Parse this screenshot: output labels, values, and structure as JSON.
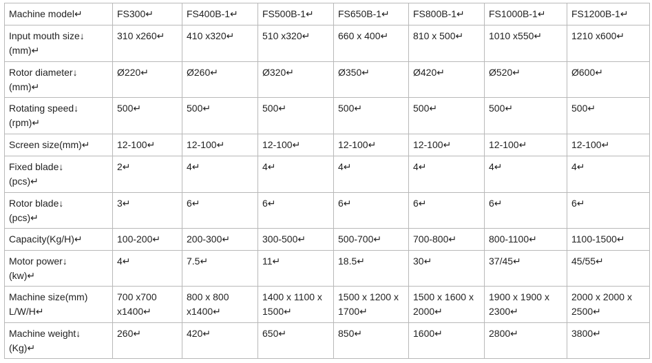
{
  "table": {
    "rows": [
      [
        [
          "Machine model↵"
        ],
        [
          "FS300↵"
        ],
        [
          "FS400B-1↵"
        ],
        [
          "FS500B-1↵"
        ],
        [
          "FS650B-1↵"
        ],
        [
          "FS800B-1↵"
        ],
        [
          "FS1000B-1↵"
        ],
        [
          "FS1200B-1↵"
        ]
      ],
      [
        [
          "Input mouth size↓",
          "(mm)↵"
        ],
        [
          "310 x260↵"
        ],
        [
          "410 x320↵"
        ],
        [
          "510 x320↵"
        ],
        [
          "660 x 400↵"
        ],
        [
          "810 x 500↵"
        ],
        [
          "1010 x550↵"
        ],
        [
          "1210 x600↵"
        ]
      ],
      [
        [
          "Rotor diameter↓",
          "(mm)↵"
        ],
        [
          "Ø220↵"
        ],
        [
          "Ø260↵"
        ],
        [
          "Ø320↵"
        ],
        [
          "Ø350↵"
        ],
        [
          "Ø420↵"
        ],
        [
          "Ø520↵"
        ],
        [
          "Ø600↵"
        ]
      ],
      [
        [
          "Rotating speed↓",
          "(rpm)↵"
        ],
        [
          "500↵"
        ],
        [
          "500↵"
        ],
        [
          "500↵"
        ],
        [
          "500↵"
        ],
        [
          "500↵"
        ],
        [
          "500↵"
        ],
        [
          "500↵"
        ]
      ],
      [
        [
          "Screen size(mm)↵"
        ],
        [
          "12-100↵"
        ],
        [
          "12-100↵"
        ],
        [
          "12-100↵"
        ],
        [
          "12-100↵"
        ],
        [
          "12-100↵"
        ],
        [
          "12-100↵"
        ],
        [
          "12-100↵"
        ]
      ],
      [
        [
          "Fixed blade↓",
          "(pcs)↵"
        ],
        [
          "2↵"
        ],
        [
          "4↵"
        ],
        [
          "4↵"
        ],
        [
          "4↵"
        ],
        [
          "4↵"
        ],
        [
          "4↵"
        ],
        [
          "4↵"
        ]
      ],
      [
        [
          "Rotor blade↓",
          "(pcs)↵"
        ],
        [
          "3↵"
        ],
        [
          "6↵"
        ],
        [
          "6↵"
        ],
        [
          "6↵"
        ],
        [
          "6↵"
        ],
        [
          "6↵"
        ],
        [
          "6↵"
        ]
      ],
      [
        [
          "Capacity(Kg/H)↵"
        ],
        [
          "100-200↵"
        ],
        [
          "200-300↵"
        ],
        [
          "300-500↵"
        ],
        [
          "500-700↵"
        ],
        [
          "700-800↵"
        ],
        [
          "800-1100↵"
        ],
        [
          "1100-1500↵"
        ]
      ],
      [
        [
          "Motor power↓",
          "(kw)↵"
        ],
        [
          "4↵"
        ],
        [
          "7.5↵"
        ],
        [
          "11↵"
        ],
        [
          "18.5↵"
        ],
        [
          "30↵"
        ],
        [
          "37/45↵"
        ],
        [
          "45/55↵"
        ]
      ],
      [
        [
          "Machine size(mm)",
          "L/W/H↵"
        ],
        [
          "700 x700",
          "x1400↵"
        ],
        [
          "800 x 800",
          "x1400↵"
        ],
        [
          "1400 x 1100 x",
          "1500↵"
        ],
        [
          "1500 x 1200 x",
          "1700↵"
        ],
        [
          "1500 x 1600 x",
          "2000↵"
        ],
        [
          "1900 x 1900 x",
          "2300↵"
        ],
        [
          "2000 x 2000 x",
          "2500↵"
        ]
      ],
      [
        [
          "Machine weight↓",
          "(Kg)↵"
        ],
        [
          "260↵"
        ],
        [
          "420↵"
        ],
        [
          "650↵"
        ],
        [
          "850↵"
        ],
        [
          "1600↵"
        ],
        [
          "2800↵"
        ],
        [
          "3800↵"
        ]
      ]
    ]
  }
}
